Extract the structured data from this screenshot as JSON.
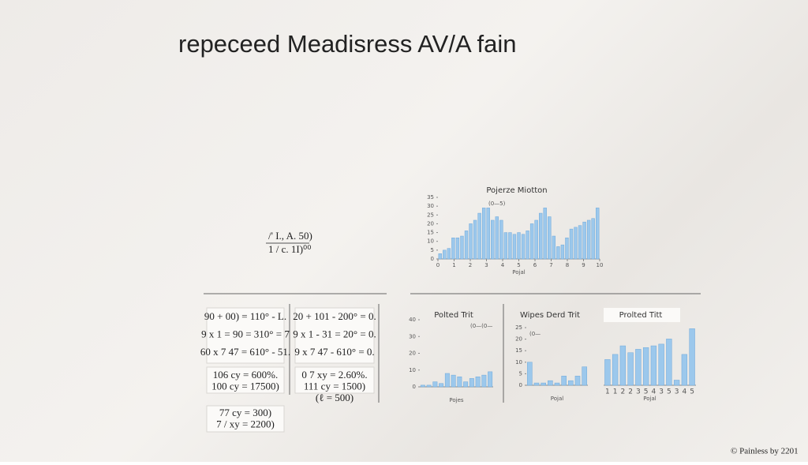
{
  "title": "repeceed Meadisress AV/A fain",
  "notes": [
    "/' I., A. 50)",
    "1 / c. 1I)⁰⁰"
  ],
  "formulas": {
    "left": [
      "90 + 00) = 110° - L.",
      "9 x 1 = 90 = 310° = 7",
      "60 x 7 47 = 610° - 51."
    ],
    "right": [
      "20 + 101 - 200° = 0.",
      "9 x 1 - 31 = 20° = 0.",
      "9 x 7 47 - 610° = 0."
    ],
    "left_lower": [
      "106 cy = 600%.",
      "100 cy = 17500)"
    ],
    "right_lower": [
      "0 7 xy = 2.60%.",
      "111 cy = 1500)",
      "(ℓ = 500)"
    ],
    "bottom": [
      "77 cy = 300)",
      "7 / xy = 2200)"
    ]
  },
  "charts": [
    {
      "type": "bar",
      "title": "Pojerze Miotton",
      "annotation": "(0—5)",
      "x_label": "Pojal",
      "color": "#9cc8ec",
      "values": [
        3,
        5,
        6,
        12,
        12,
        13,
        16,
        20,
        22,
        26,
        29,
        29,
        22,
        24,
        22,
        15,
        15,
        14,
        15,
        14,
        16,
        20,
        22,
        26,
        29,
        24,
        13,
        7,
        8,
        12,
        17,
        18,
        19,
        21,
        22,
        23,
        29
      ],
      "ylim": [
        0,
        35
      ],
      "yticks": [
        0,
        5,
        10,
        15,
        20,
        25,
        30,
        35
      ],
      "xlim": [
        0,
        10
      ],
      "xticks": [
        0,
        1,
        2,
        3,
        4,
        5,
        6,
        7,
        8,
        9,
        10
      ]
    },
    {
      "type": "bar",
      "title": "Polted Trit",
      "annotation": "(0—(0—",
      "x_label": "Pojes",
      "color": "#9cc8ec",
      "values": [
        1,
        1,
        3,
        2,
        8,
        7,
        6,
        3,
        5,
        6,
        7,
        9
      ],
      "ylim": [
        0,
        40
      ],
      "yticks": [
        0,
        10,
        20,
        30,
        40
      ]
    },
    {
      "type": "bar",
      "title": "Wipes Derd Trit",
      "annotation": "(0—",
      "x_label": "Pojal",
      "color": "#9cc8ec",
      "values": [
        10,
        1,
        1,
        2,
        1,
        4,
        2,
        4,
        8
      ],
      "ylim": [
        0,
        25
      ],
      "yticks": [
        0,
        5,
        10,
        15,
        20,
        25
      ]
    },
    {
      "type": "bar",
      "title": "Prolted Titt",
      "x_label": "Pojal",
      "color": "#9cc8ec",
      "categories": [
        "1",
        "1",
        "2",
        "2",
        "3",
        "5",
        "4",
        "3",
        "5",
        "3",
        "4",
        "5"
      ],
      "values": [
        15,
        18,
        23,
        19,
        21,
        22,
        23,
        24,
        27,
        3,
        18,
        33
      ],
      "ylim": [
        0,
        35
      ]
    }
  ],
  "footer": "© Painless by 2201"
}
